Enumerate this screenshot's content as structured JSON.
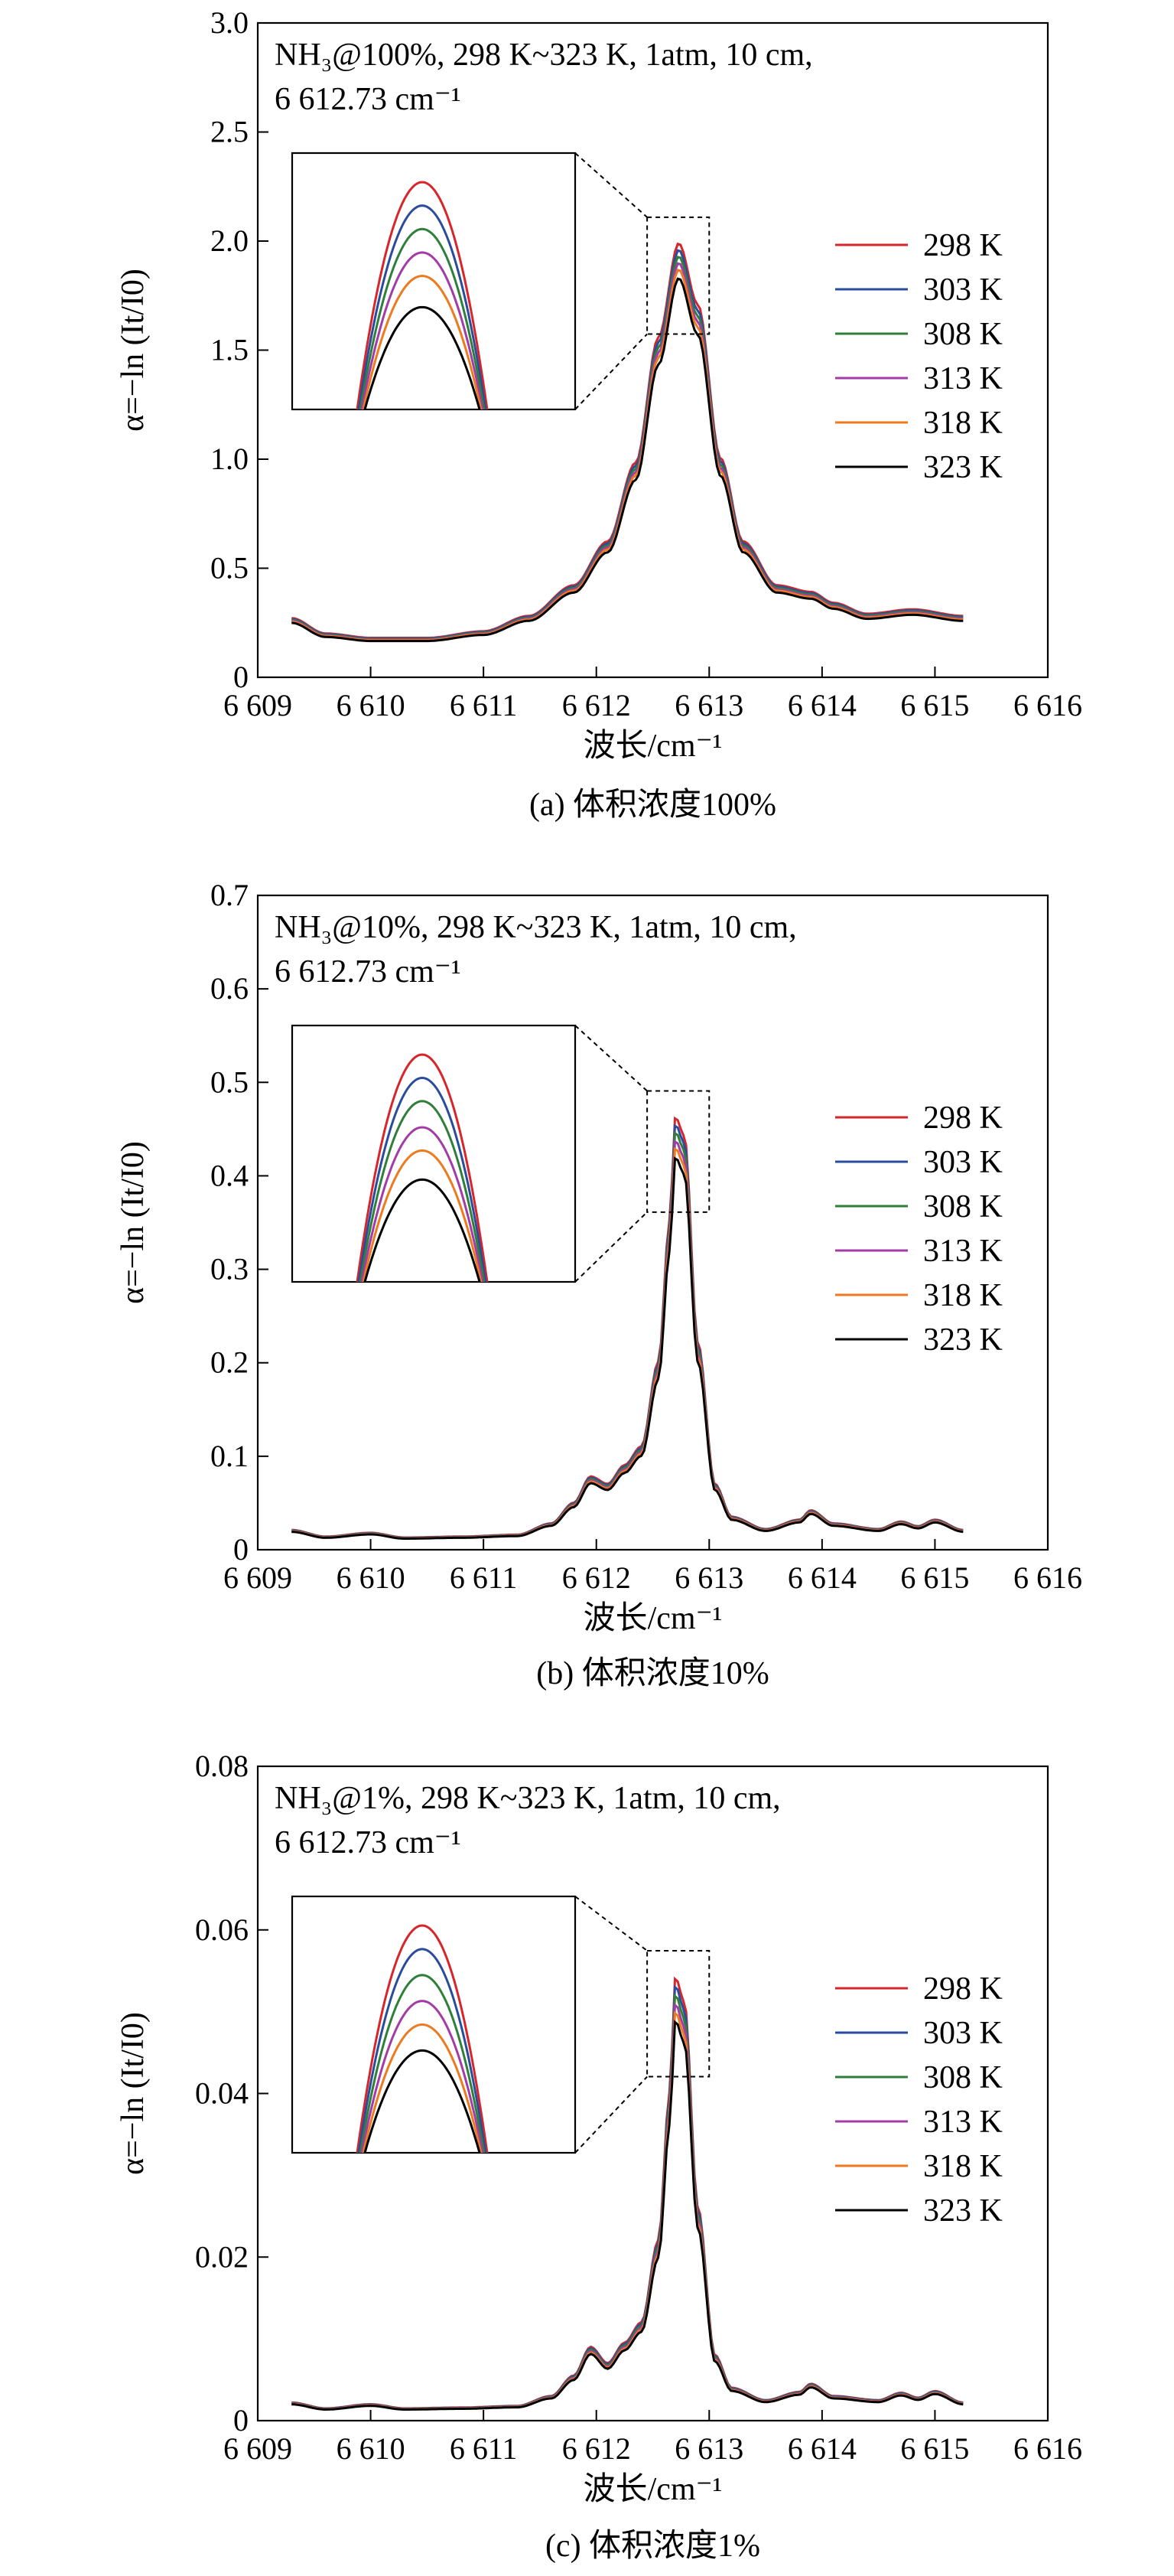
{
  "colors": {
    "298 K": "#d7262b",
    "303 K": "#2a4c9d",
    "308 K": "#2f7f3a",
    "313 K": "#a23ca6",
    "318 K": "#ee7a1f",
    "323 K": "#000000"
  },
  "chart_data": [
    {
      "type": "line",
      "caption": "(a) 体积浓度100%",
      "annotation_line1": "NH₃@100%, 298 K~323 K, 1atm, 10 cm,",
      "annotation_line2": "6 612.73 cm⁻¹",
      "xlabel": "波长/cm⁻¹",
      "ylabel": "α=−ln (It/I0)",
      "xlim": [
        6609,
        6616
      ],
      "ylim": [
        0,
        3.0
      ],
      "x_ticks": [
        6609,
        6610,
        6611,
        6612,
        6613,
        6614,
        6615,
        6616
      ],
      "x_tick_labels": [
        "6 609",
        "6 610",
        "6 611",
        "6 612",
        "6 613",
        "6 614",
        "6 615",
        "6 616"
      ],
      "y_ticks": [
        0,
        0.5,
        1.0,
        1.5,
        2.0,
        2.5,
        3.0
      ],
      "y_tick_labels": [
        "0",
        "0.5",
        "1.0",
        "1.5",
        "2.0",
        "2.5",
        "3.0"
      ],
      "legend": [
        "298 K",
        "303 K",
        "308 K",
        "313 K",
        "318 K",
        "323 K"
      ],
      "legend_position": "right",
      "inset": true,
      "series_template": {
        "x": [
          6609.3,
          6609.6,
          6610.0,
          6610.5,
          6611.0,
          6611.4,
          6611.8,
          6612.1,
          6612.35,
          6612.55,
          6612.73,
          6612.9,
          6613.1,
          6613.3,
          6613.6,
          6613.9,
          6614.1,
          6614.4,
          6614.8,
          6615.25
        ],
        "y": [
          0.27,
          0.2,
          0.18,
          0.18,
          0.21,
          0.28,
          0.42,
          0.62,
          0.98,
          1.55,
          1.98,
          1.7,
          1.0,
          0.62,
          0.42,
          0.39,
          0.34,
          0.29,
          0.31,
          0.28
        ]
      },
      "series": [
        {
          "name": "298 K",
          "peak": 1.99
        },
        {
          "name": "303 K",
          "peak": 1.96
        },
        {
          "name": "308 K",
          "peak": 1.93
        },
        {
          "name": "313 K",
          "peak": 1.9
        },
        {
          "name": "318 K",
          "peak": 1.87
        },
        {
          "name": "323 K",
          "peak": 1.83
        }
      ]
    },
    {
      "type": "line",
      "caption": "(b) 体积浓度10%",
      "annotation_line1": "NH₃@10%, 298 K~323 K, 1atm, 10 cm,",
      "annotation_line2": "6 612.73 cm⁻¹",
      "xlabel": "波长/cm⁻¹",
      "ylabel": "α=−ln (It/I0)",
      "xlim": [
        6609,
        6616
      ],
      "ylim": [
        0,
        0.7
      ],
      "x_ticks": [
        6609,
        6610,
        6611,
        6612,
        6613,
        6614,
        6615,
        6616
      ],
      "x_tick_labels": [
        "6 609",
        "6 610",
        "6 611",
        "6 612",
        "6 613",
        "6 614",
        "6 615",
        "6 616"
      ],
      "y_ticks": [
        0,
        0.1,
        0.2,
        0.3,
        0.4,
        0.5,
        0.6,
        0.7
      ],
      "y_tick_labels": [
        "0",
        "0.1",
        "0.2",
        "0.3",
        "0.4",
        "0.5",
        "0.6",
        "0.7"
      ],
      "legend": [
        "298 K",
        "303 K",
        "308 K",
        "313 K",
        "318 K",
        "323 K"
      ],
      "legend_position": "right",
      "inset": true,
      "series_template": {
        "x": [
          6609.3,
          6609.6,
          6610.0,
          6610.3,
          6610.8,
          6611.3,
          6611.6,
          6611.8,
          6611.95,
          6612.1,
          6612.25,
          6612.4,
          6612.55,
          6612.65,
          6612.7,
          6612.78,
          6612.9,
          6613.05,
          6613.2,
          6613.5,
          6613.8,
          6613.9,
          6614.1,
          6614.5,
          6614.7,
          6614.85,
          6615.0,
          6615.25
        ],
        "y": [
          0.021,
          0.014,
          0.018,
          0.013,
          0.014,
          0.016,
          0.028,
          0.05,
          0.078,
          0.07,
          0.09,
          0.11,
          0.2,
          0.35,
          0.46,
          0.44,
          0.22,
          0.07,
          0.035,
          0.022,
          0.032,
          0.042,
          0.028,
          0.022,
          0.03,
          0.025,
          0.032,
          0.021
        ]
      },
      "series": [
        {
          "name": "298 K",
          "peak": 0.463
        },
        {
          "name": "303 K",
          "peak": 0.455
        },
        {
          "name": "308 K",
          "peak": 0.447
        },
        {
          "name": "313 K",
          "peak": 0.438
        },
        {
          "name": "318 K",
          "peak": 0.43
        },
        {
          "name": "323 K",
          "peak": 0.42
        }
      ]
    },
    {
      "type": "line",
      "caption": "(c) 体积浓度1%",
      "annotation_line1": "NH₃@1%, 298 K~323 K, 1atm, 10 cm,",
      "annotation_line2": "6 612.73 cm⁻¹",
      "xlabel": "波长/cm⁻¹",
      "ylabel": "α=−ln (It/I0)",
      "xlim": [
        6609,
        6616
      ],
      "ylim": [
        0,
        0.08
      ],
      "x_ticks": [
        6609,
        6610,
        6611,
        6612,
        6613,
        6614,
        6615,
        6616
      ],
      "x_tick_labels": [
        "6 609",
        "6 610",
        "6 611",
        "6 612",
        "6 613",
        "6 614",
        "6 615",
        "6 616"
      ],
      "y_ticks": [
        0,
        0.02,
        0.04,
        0.06,
        0.08
      ],
      "y_tick_labels": [
        "0",
        "0.02",
        "0.04",
        "0.06",
        "0.08"
      ],
      "legend": [
        "298 K",
        "303 K",
        "308 K",
        "313 K",
        "318 K",
        "323 K"
      ],
      "legend_position": "right",
      "inset": true,
      "series_template": {
        "x": [
          6609.3,
          6609.6,
          6610.0,
          6610.3,
          6610.8,
          6611.3,
          6611.6,
          6611.8,
          6611.95,
          6612.1,
          6612.25,
          6612.4,
          6612.55,
          6612.65,
          6612.7,
          6612.78,
          6612.9,
          6613.05,
          6613.2,
          6613.5,
          6613.8,
          6613.9,
          6614.1,
          6614.5,
          6614.7,
          6614.85,
          6615.0,
          6615.25
        ],
        "y": [
          0.0022,
          0.0015,
          0.002,
          0.0015,
          0.0016,
          0.0018,
          0.003,
          0.0055,
          0.009,
          0.007,
          0.0095,
          0.012,
          0.022,
          0.04,
          0.054,
          0.051,
          0.026,
          0.008,
          0.004,
          0.0025,
          0.0035,
          0.0045,
          0.003,
          0.0025,
          0.0034,
          0.0028,
          0.0036,
          0.0022
        ]
      },
      "series": [
        {
          "name": "298 K",
          "peak": 0.0542
        },
        {
          "name": "303 K",
          "peak": 0.0532
        },
        {
          "name": "308 K",
          "peak": 0.0521
        },
        {
          "name": "313 K",
          "peak": 0.051
        },
        {
          "name": "318 K",
          "peak": 0.05
        },
        {
          "name": "323 K",
          "peak": 0.0489
        }
      ]
    }
  ]
}
